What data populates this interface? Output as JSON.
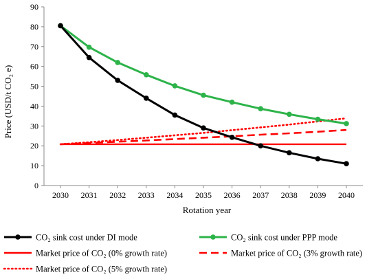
{
  "chart_data": {
    "type": "line",
    "title": "",
    "xlabel": "Rotation year",
    "ylabel": "Price (USD/t CO₂ e)",
    "x": [
      2030,
      2031,
      2032,
      2033,
      2034,
      2035,
      2036,
      2037,
      2038,
      2039,
      2040
    ],
    "ylim": [
      0,
      90
    ],
    "yticks": [
      0,
      10,
      20,
      30,
      40,
      50,
      60,
      70,
      80,
      90
    ],
    "grid": false,
    "legend_position": "bottom",
    "series": [
      {
        "name": "CO₂ sink cost under DI mode",
        "color": "#000000",
        "style": "solid-markers",
        "values": [
          80.5,
          64.5,
          53,
          44,
          35.5,
          29,
          24.3,
          20,
          16.5,
          13.5,
          11
        ]
      },
      {
        "name": "CO₂ sink cost under PPP mode",
        "color": "#2db34a",
        "style": "solid-markers",
        "values": [
          80.5,
          69.7,
          62,
          55.8,
          50.2,
          45.5,
          42,
          38.7,
          35.9,
          33.4,
          31.2
        ]
      },
      {
        "name": "Market price of CO₂ (0% growth rate)",
        "color": "#ff0000",
        "style": "solid",
        "values": [
          20.8,
          20.8,
          20.8,
          20.8,
          20.8,
          20.8,
          20.8,
          20.8,
          20.8,
          20.8,
          20.8
        ]
      },
      {
        "name": "Market price of CO₂ (3% growth rate)",
        "color": "#ff0000",
        "style": "dashed",
        "values": [
          20.8,
          21.4,
          22.1,
          22.7,
          23.4,
          24.1,
          24.8,
          25.6,
          26.3,
          27.1,
          28.0
        ]
      },
      {
        "name": "Market price of CO₂ (5% growth rate)",
        "color": "#ff0000",
        "style": "dotted",
        "values": [
          20.8,
          21.8,
          22.9,
          24.1,
          25.3,
          26.5,
          27.9,
          29.3,
          30.7,
          32.3,
          33.9
        ]
      }
    ]
  }
}
